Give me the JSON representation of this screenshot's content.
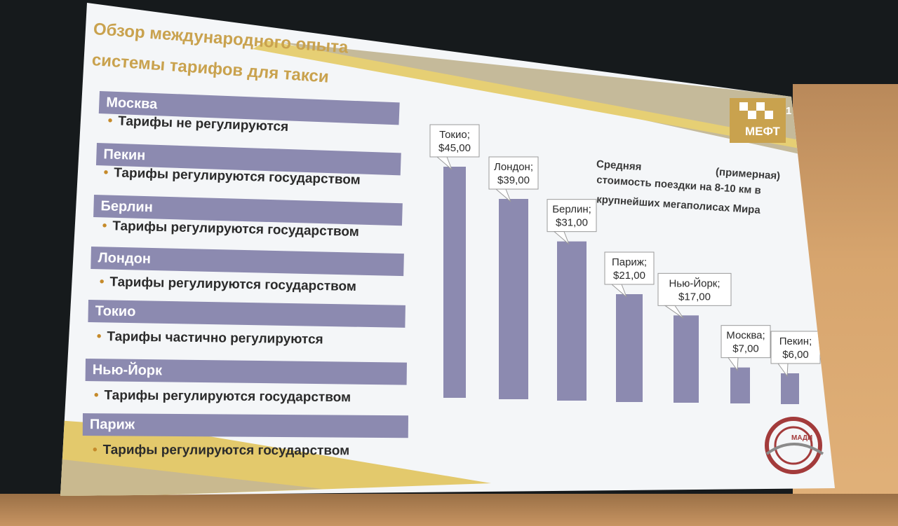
{
  "slide_title_line1": "Обзор международного опыта",
  "slide_title_line2": "системы тарифов для такси",
  "cities": [
    {
      "name": "Москва",
      "note": "Тарифы не регулируются"
    },
    {
      "name": "Пекин",
      "note": "Тарифы регулируются государством"
    },
    {
      "name": "Берлин",
      "note": "Тарифы регулируются государством"
    },
    {
      "name": "Лондон",
      "note": "Тарифы регулируются государством"
    },
    {
      "name": "Токио",
      "note": "Тарифы частично регулируются"
    },
    {
      "name": "Нью-Йорк",
      "note": "Тарифы регулируются государством"
    },
    {
      "name": "Париж",
      "note": "Тарифы регулируются государством"
    }
  ],
  "chart_note_line1a": "Средняя",
  "chart_note_line1b": "(примерная)",
  "chart_note_line2": "стоимость поездки на 8-10 км в",
  "chart_note_line3": "крупнейших мегаполисах Мира",
  "logo_text": "МЕФТ",
  "page_number": "1",
  "madi_label": "МАДИ",
  "colors": {
    "bar": "#8c8ab0",
    "accent": "#c9a24e",
    "title": "#c9a24e"
  },
  "chart_data": {
    "type": "bar",
    "categories": [
      "Токио",
      "Лондон",
      "Берлин",
      "Париж",
      "Нью-Йорк",
      "Москва",
      "Пекин"
    ],
    "values": [
      45.0,
      39.0,
      31.0,
      21.0,
      17.0,
      7.0,
      6.0
    ],
    "value_labels": [
      "$45,00",
      "$39,00",
      "$31,00",
      "$21,00",
      "$17,00",
      "$7,00",
      "$6,00"
    ],
    "title": "",
    "xlabel": "",
    "ylabel": "",
    "ylim": [
      0,
      45
    ],
    "grid": false,
    "legend": "none"
  }
}
